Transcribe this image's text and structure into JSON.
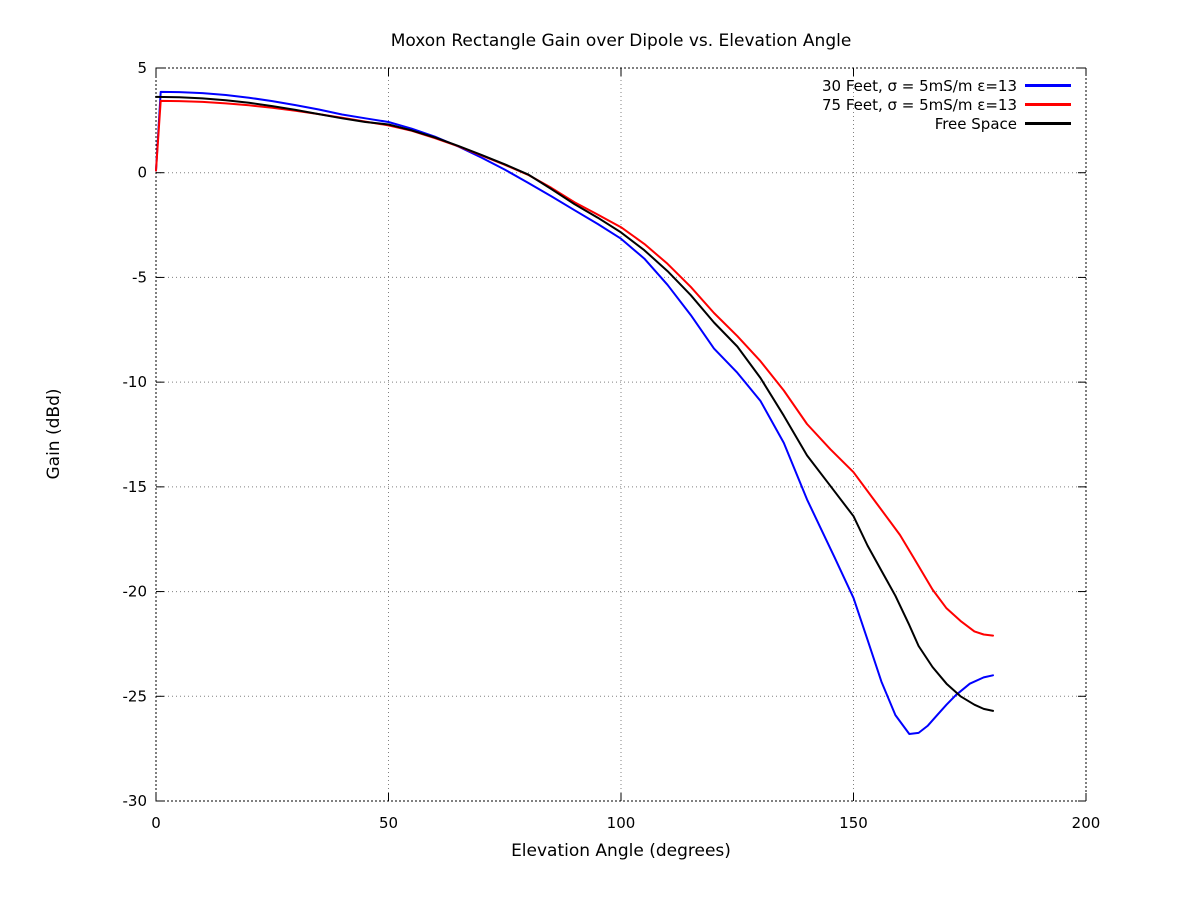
{
  "page": {
    "background": "#ffffff"
  },
  "chart_data": {
    "type": "line",
    "title": "Moxon Rectangle Gain over Dipole vs. Elevation Angle",
    "xlabel": "Elevation Angle (degrees)",
    "ylabel": "Gain (dBd)",
    "xlim": [
      0,
      200
    ],
    "ylim": [
      -30,
      5
    ],
    "xticks": [
      0,
      50,
      100,
      150,
      200
    ],
    "yticks": [
      5,
      0,
      -5,
      -10,
      -15,
      -20,
      -25,
      -30
    ],
    "grid": true,
    "legend_position": "top-right",
    "grid_color": "#808080",
    "series": [
      {
        "name": "30 Feet, σ = 5mS/m ε=13",
        "color": "#0000ff",
        "points": [
          [
            0,
            0.1
          ],
          [
            1,
            3.86
          ],
          [
            5,
            3.85
          ],
          [
            10,
            3.8
          ],
          [
            15,
            3.71
          ],
          [
            20,
            3.58
          ],
          [
            25,
            3.42
          ],
          [
            30,
            3.23
          ],
          [
            35,
            3.02
          ],
          [
            40,
            2.78
          ],
          [
            45,
            2.6
          ],
          [
            50,
            2.42
          ],
          [
            55,
            2.1
          ],
          [
            60,
            1.72
          ],
          [
            65,
            1.25
          ],
          [
            70,
            0.72
          ],
          [
            75,
            0.15
          ],
          [
            80,
            -0.48
          ],
          [
            85,
            -1.12
          ],
          [
            90,
            -1.79
          ],
          [
            95,
            -2.45
          ],
          [
            100,
            -3.15
          ],
          [
            105,
            -4.1
          ],
          [
            110,
            -5.35
          ],
          [
            115,
            -6.8
          ],
          [
            120,
            -8.4
          ],
          [
            125,
            -9.55
          ],
          [
            130,
            -10.9
          ],
          [
            135,
            -12.9
          ],
          [
            140,
            -15.6
          ],
          [
            143,
            -17.0
          ],
          [
            146,
            -18.4
          ],
          [
            150,
            -20.3
          ],
          [
            153,
            -22.3
          ],
          [
            156,
            -24.3
          ],
          [
            159,
            -25.9
          ],
          [
            162,
            -26.8
          ],
          [
            164,
            -26.75
          ],
          [
            166,
            -26.4
          ],
          [
            168,
            -25.9
          ],
          [
            170,
            -25.4
          ],
          [
            172,
            -24.95
          ],
          [
            175,
            -24.4
          ],
          [
            178,
            -24.1
          ],
          [
            180,
            -24.0
          ]
        ]
      },
      {
        "name": "75 Feet, σ = 5mS/m ε=13",
        "color": "#ff0000",
        "points": [
          [
            0,
            0.1
          ],
          [
            1,
            3.43
          ],
          [
            5,
            3.42
          ],
          [
            10,
            3.38
          ],
          [
            15,
            3.31
          ],
          [
            20,
            3.22
          ],
          [
            25,
            3.1
          ],
          [
            30,
            2.96
          ],
          [
            35,
            2.8
          ],
          [
            40,
            2.62
          ],
          [
            45,
            2.44
          ],
          [
            50,
            2.26
          ],
          [
            55,
            2.0
          ],
          [
            60,
            1.65
          ],
          [
            65,
            1.26
          ],
          [
            70,
            0.82
          ],
          [
            75,
            0.38
          ],
          [
            80,
            -0.1
          ],
          [
            85,
            -0.72
          ],
          [
            90,
            -1.41
          ],
          [
            95,
            -2.0
          ],
          [
            100,
            -2.6
          ],
          [
            105,
            -3.4
          ],
          [
            110,
            -4.35
          ],
          [
            115,
            -5.45
          ],
          [
            120,
            -6.7
          ],
          [
            125,
            -7.8
          ],
          [
            130,
            -9.0
          ],
          [
            135,
            -10.4
          ],
          [
            140,
            -12.0
          ],
          [
            145,
            -13.2
          ],
          [
            150,
            -14.3
          ],
          [
            155,
            -15.8
          ],
          [
            160,
            -17.3
          ],
          [
            163,
            -18.4
          ],
          [
            167,
            -19.9
          ],
          [
            170,
            -20.8
          ],
          [
            173,
            -21.4
          ],
          [
            176,
            -21.9
          ],
          [
            178,
            -22.05
          ],
          [
            180,
            -22.1
          ]
        ]
      },
      {
        "name": "Free Space",
        "color": "#000000",
        "points": [
          [
            0,
            3.62
          ],
          [
            5,
            3.6
          ],
          [
            10,
            3.55
          ],
          [
            15,
            3.46
          ],
          [
            20,
            3.34
          ],
          [
            25,
            3.18
          ],
          [
            30,
            3.0
          ],
          [
            35,
            2.8
          ],
          [
            40,
            2.6
          ],
          [
            45,
            2.42
          ],
          [
            50,
            2.3
          ],
          [
            55,
            2.02
          ],
          [
            60,
            1.68
          ],
          [
            65,
            1.28
          ],
          [
            70,
            0.85
          ],
          [
            75,
            0.4
          ],
          [
            80,
            -0.08
          ],
          [
            85,
            -0.78
          ],
          [
            90,
            -1.5
          ],
          [
            95,
            -2.15
          ],
          [
            100,
            -2.85
          ],
          [
            105,
            -3.7
          ],
          [
            110,
            -4.7
          ],
          [
            115,
            -5.85
          ],
          [
            120,
            -7.15
          ],
          [
            125,
            -8.3
          ],
          [
            130,
            -9.8
          ],
          [
            135,
            -11.6
          ],
          [
            140,
            -13.5
          ],
          [
            145,
            -14.95
          ],
          [
            150,
            -16.4
          ],
          [
            153,
            -17.8
          ],
          [
            156,
            -19.0
          ],
          [
            159,
            -20.2
          ],
          [
            162,
            -21.6
          ],
          [
            164,
            -22.6
          ],
          [
            167,
            -23.6
          ],
          [
            170,
            -24.4
          ],
          [
            173,
            -25.0
          ],
          [
            176,
            -25.4
          ],
          [
            178,
            -25.6
          ],
          [
            180,
            -25.7
          ]
        ]
      }
    ]
  }
}
